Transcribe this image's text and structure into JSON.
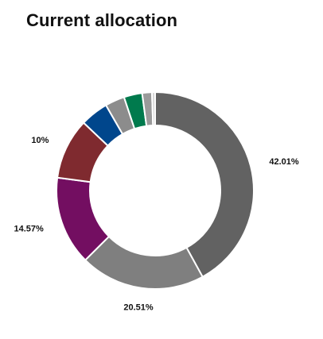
{
  "page": {
    "title": "Current allocation"
  },
  "chart_data": {
    "type": "pie",
    "variant": "donut",
    "title": "Current allocation",
    "categories": [
      "",
      "",
      "",
      "",
      "",
      "",
      "",
      "",
      ""
    ],
    "values": [
      42.01,
      20.51,
      14.57,
      10.0,
      4.6,
      3.2,
      3.0,
      1.6,
      0.51
    ],
    "colors": [
      "#626262",
      "#7f7f7f",
      "#730e61",
      "#7f2a2f",
      "#00468c",
      "#8c8c8c",
      "#007a4d",
      "#9a9a9a",
      "#d4d4d4"
    ],
    "data_labels": [
      "42.01%",
      "20.51%",
      "14.57%",
      "10%",
      "",
      "",
      "",
      "",
      ""
    ],
    "legend": "none",
    "start_angle": "12 o'clock",
    "direction": "clockwise"
  }
}
